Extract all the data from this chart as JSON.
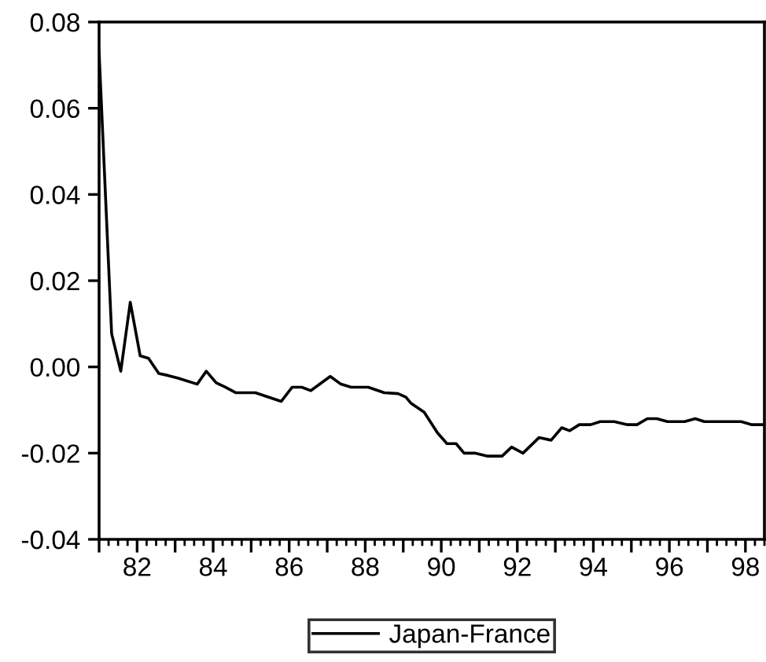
{
  "chart_data": {
    "type": "line",
    "xlim": [
      81,
      98.5
    ],
    "ylim": [
      -0.04,
      0.08
    ],
    "yticks": [
      {
        "value": -0.04,
        "label": "-0.04"
      },
      {
        "value": -0.02,
        "label": "-0.02"
      },
      {
        "value": 0,
        "label": "0.00"
      },
      {
        "value": 0.02,
        "label": "0.02"
      },
      {
        "value": 0.04,
        "label": "0.04"
      },
      {
        "value": 0.06,
        "label": "0.06"
      },
      {
        "value": 0.08,
        "label": "0.08"
      }
    ],
    "xticks": [
      {
        "value": 81,
        "label": null
      },
      {
        "value": 82,
        "label": "82"
      },
      {
        "value": 83,
        "label": null
      },
      {
        "value": 84,
        "label": "84"
      },
      {
        "value": 85,
        "label": null
      },
      {
        "value": 86,
        "label": "86"
      },
      {
        "value": 87,
        "label": null
      },
      {
        "value": 88,
        "label": "88"
      },
      {
        "value": 89,
        "label": null
      },
      {
        "value": 90,
        "label": "90"
      },
      {
        "value": 91,
        "label": null
      },
      {
        "value": 92,
        "label": "92"
      },
      {
        "value": 93,
        "label": null
      },
      {
        "value": 94,
        "label": "94"
      },
      {
        "value": 95,
        "label": null
      },
      {
        "value": 96,
        "label": "96"
      },
      {
        "value": 97,
        "label": null
      },
      {
        "value": 98,
        "label": "98"
      }
    ],
    "grid": false,
    "legend": "bottom",
    "line_style": "solid",
    "marker": "none",
    "series": [
      {
        "name": "Japan-France",
        "color": "#000000",
        "x": [
          81.0,
          81.33,
          81.57,
          81.82,
          82.08,
          82.3,
          82.57,
          82.82,
          83.08,
          83.58,
          83.82,
          84.08,
          84.32,
          84.6,
          85.11,
          85.79,
          86.08,
          86.33,
          86.57,
          87.08,
          87.36,
          87.63,
          88.08,
          88.5,
          88.86,
          89.07,
          89.2,
          89.55,
          89.9,
          90.15,
          90.39,
          90.6,
          90.88,
          91.22,
          91.6,
          91.85,
          92.15,
          92.57,
          92.89,
          93.17,
          93.38,
          93.63,
          93.93,
          94.18,
          94.55,
          94.9,
          95.15,
          95.42,
          95.67,
          95.95,
          96.4,
          96.68,
          96.92,
          97.89,
          98.17,
          98.5
        ],
        "values": [
          0.073,
          0.0077,
          -0.001,
          0.015,
          0.0026,
          0.002,
          -0.0015,
          -0.002,
          -0.0026,
          -0.004,
          -0.001,
          -0.0037,
          -0.0047,
          -0.006,
          -0.006,
          -0.008,
          -0.0047,
          -0.0047,
          -0.0055,
          -0.0022,
          -0.004,
          -0.0047,
          -0.0047,
          -0.006,
          -0.0062,
          -0.007,
          -0.0084,
          -0.0105,
          -0.0153,
          -0.0178,
          -0.0178,
          -0.02,
          -0.02,
          -0.0207,
          -0.0207,
          -0.0186,
          -0.02,
          -0.0164,
          -0.017,
          -0.0141,
          -0.0148,
          -0.0134,
          -0.0134,
          -0.0127,
          -0.0127,
          -0.0134,
          -0.0134,
          -0.012,
          -0.012,
          -0.0127,
          -0.0127,
          -0.012,
          -0.0127,
          -0.0127,
          -0.0134,
          -0.0134
        ]
      }
    ]
  }
}
